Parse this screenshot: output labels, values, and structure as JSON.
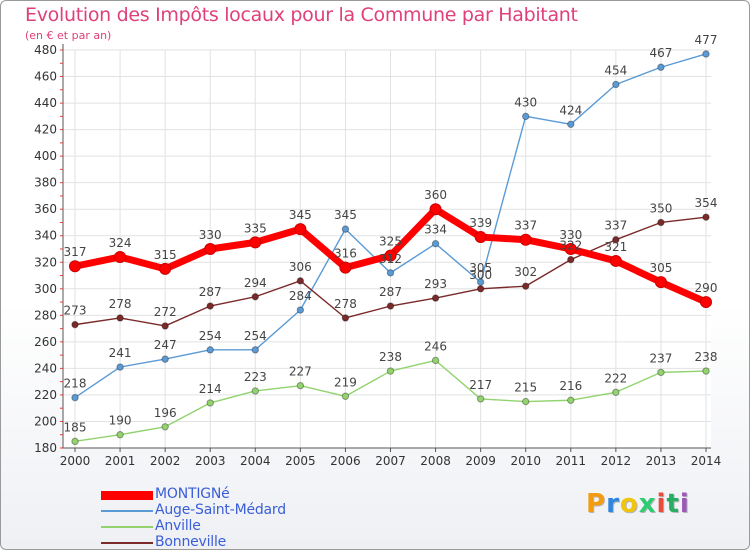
{
  "title": "Evolution des Impôts locaux pour la Commune par Habitant",
  "subtitle": "(en € et par an)",
  "logo": {
    "letters": [
      "P",
      "r",
      "o",
      "x",
      "i",
      "t",
      "i"
    ],
    "colors": [
      "#f39c12",
      "#2e86de",
      "#f1c40f",
      "#2ecc71",
      "#e74c3c",
      "#27ae60",
      "#9b59b6"
    ]
  },
  "chart_data": {
    "type": "line",
    "x": [
      2000,
      2001,
      2002,
      2003,
      2004,
      2005,
      2006,
      2007,
      2008,
      2009,
      2010,
      2011,
      2012,
      2013,
      2014
    ],
    "ylim": [
      180,
      480
    ],
    "yticks": [
      180,
      200,
      220,
      240,
      260,
      280,
      300,
      320,
      340,
      360,
      380,
      400,
      420,
      440,
      460,
      480
    ],
    "grid": true,
    "legend_position": "bottom-left",
    "series": [
      {
        "name": "MONTIGNé",
        "color": "#ff0000",
        "values": [
          317,
          324,
          315,
          330,
          335,
          345,
          316,
          325,
          360,
          339,
          337,
          330,
          321,
          305,
          290
        ]
      },
      {
        "name": "Auge-Saint-Médard",
        "color": "#5b9bd5",
        "values": [
          218,
          241,
          247,
          254,
          254,
          284,
          345,
          312,
          334,
          305,
          430,
          424,
          454,
          467,
          477
        ]
      },
      {
        "name": "Anville",
        "color": "#92d36e",
        "values": [
          185,
          190,
          196,
          214,
          223,
          227,
          219,
          238,
          246,
          217,
          215,
          216,
          222,
          237,
          238
        ]
      },
      {
        "name": "Bonneville",
        "color": "#7b2a2a",
        "values": [
          273,
          278,
          272,
          287,
          294,
          306,
          278,
          287,
          293,
          300,
          302,
          322,
          337,
          350,
          354
        ]
      }
    ]
  }
}
